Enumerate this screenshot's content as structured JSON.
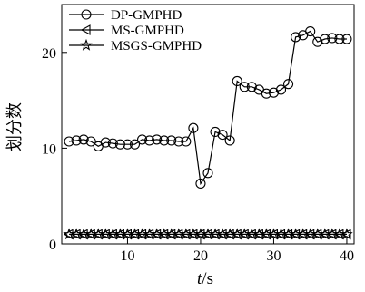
{
  "chart_data": {
    "type": "line",
    "xlabel_italic": "t",
    "xlabel_unit": "/s",
    "ylabel": "划分数",
    "xlim": [
      1,
      41
    ],
    "ylim": [
      0,
      25
    ],
    "xticks": [
      10,
      20,
      30,
      40
    ],
    "yticks": [
      0,
      10,
      20
    ],
    "grid": false,
    "legend_position": "top-left",
    "series": [
      {
        "name": "DP-GMPHD",
        "marker": "circle",
        "x": [
          2,
          3,
          4,
          5,
          6,
          7,
          8,
          9,
          10,
          11,
          12,
          13,
          14,
          15,
          16,
          17,
          18,
          19,
          20,
          21,
          22,
          23,
          24,
          25,
          26,
          27,
          28,
          29,
          30,
          31,
          32,
          33,
          34,
          35,
          36,
          37,
          38,
          39,
          40
        ],
        "y": [
          10.7,
          10.8,
          10.9,
          10.7,
          10.2,
          10.6,
          10.5,
          10.4,
          10.4,
          10.4,
          10.9,
          10.8,
          10.9,
          10.8,
          10.8,
          10.7,
          10.7,
          12.1,
          6.3,
          7.4,
          11.7,
          11.4,
          10.8,
          17.0,
          16.4,
          16.4,
          16.1,
          15.7,
          15.8,
          16.1,
          16.7,
          21.6,
          21.8,
          22.2,
          21.1,
          21.4,
          21.5,
          21.4,
          21.4
        ]
      },
      {
        "name": "MS-GMPHD",
        "marker": "triangle-left",
        "x": [
          2,
          3,
          4,
          5,
          6,
          7,
          8,
          9,
          10,
          11,
          12,
          13,
          14,
          15,
          16,
          17,
          18,
          19,
          20,
          21,
          22,
          23,
          24,
          25,
          26,
          27,
          28,
          29,
          30,
          31,
          32,
          33,
          34,
          35,
          36,
          37,
          38,
          39,
          40
        ],
        "y": [
          1,
          1,
          1,
          1,
          1,
          1,
          1,
          1,
          1,
          1,
          1,
          1,
          1,
          1,
          1,
          1,
          1,
          1,
          1,
          1,
          1,
          1,
          1,
          1,
          1,
          1,
          1,
          1,
          1,
          1,
          1,
          1,
          1,
          1,
          1,
          1,
          1,
          1,
          1
        ]
      },
      {
        "name": "MSGS-GMPHD",
        "marker": "star",
        "x": [
          2,
          3,
          4,
          5,
          6,
          7,
          8,
          9,
          10,
          11,
          12,
          13,
          14,
          15,
          16,
          17,
          18,
          19,
          20,
          21,
          22,
          23,
          24,
          25,
          26,
          27,
          28,
          29,
          30,
          31,
          32,
          33,
          34,
          35,
          36,
          37,
          38,
          39,
          40
        ],
        "y": [
          1,
          1,
          1,
          1,
          1,
          1,
          1,
          1,
          1,
          1,
          1,
          1,
          1,
          1,
          1,
          1,
          1,
          1,
          1,
          1,
          1,
          1,
          1,
          1,
          1,
          1,
          1,
          1,
          1,
          1,
          1,
          1,
          1,
          1,
          1,
          1,
          1,
          1,
          1
        ]
      }
    ]
  }
}
